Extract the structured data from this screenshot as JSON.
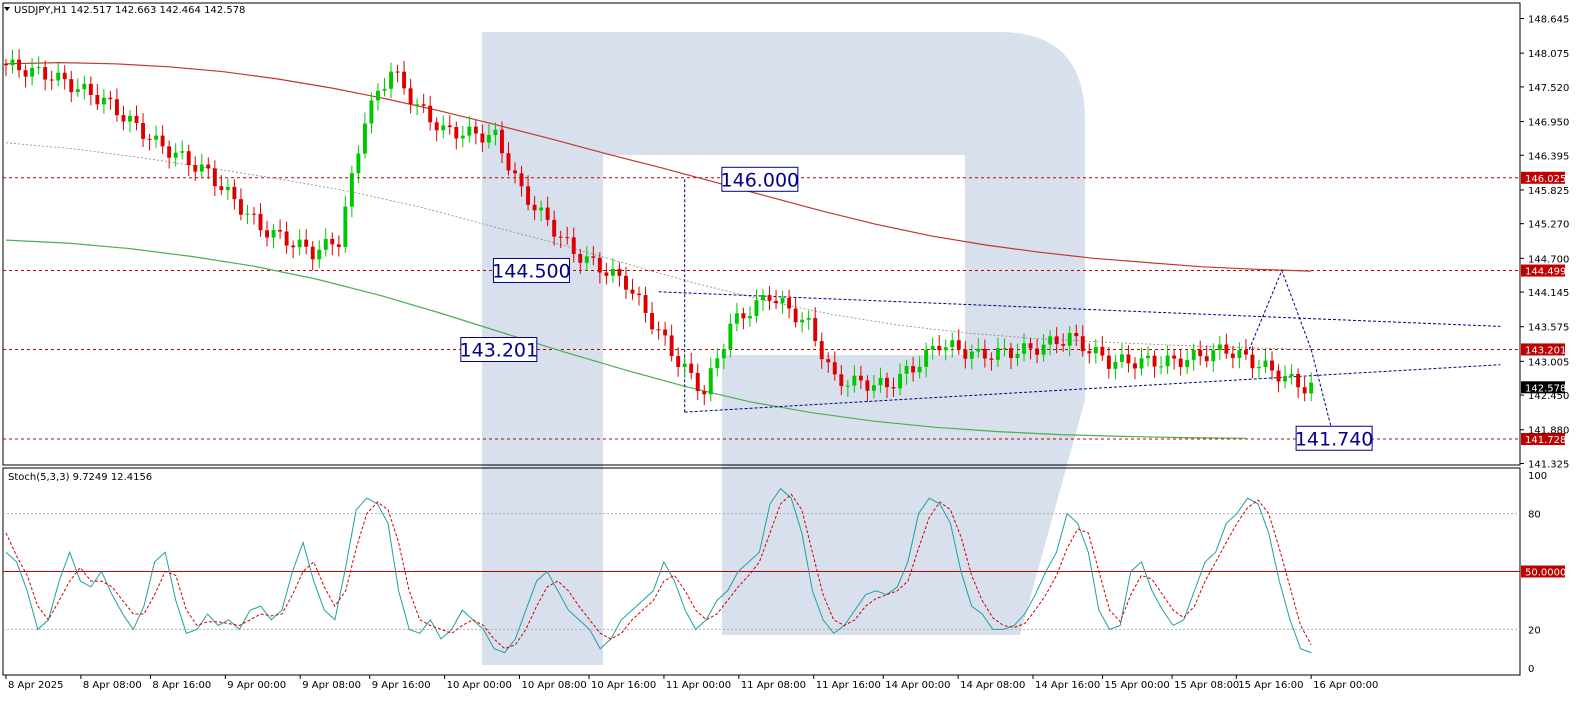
{
  "main_header": "USDJPY,H1  142.517 142.663 142.464 142.578",
  "stoch_header": "Stoch(5,3,3) 9.7249 12.4156",
  "colors": {
    "bull": "#00c800",
    "bear": "#dc0000",
    "ma_slow": "#c0392b",
    "ma_fast": "#4caf50",
    "level_line": "#c00000",
    "forecast": "#00008b",
    "stoch_main": "#20a0a0",
    "stoch_signal": "#d00000",
    "watermark": "#c9d6e6"
  },
  "chart_data": [
    {
      "type": "candlestick",
      "symbol": "USDJPY",
      "timeframe": "H1",
      "ylim": [
        141.3,
        148.9
      ],
      "y_ticks": [
        "148.645",
        "148.075",
        "147.520",
        "146.950",
        "146.395",
        "145.825",
        "145.270",
        "144.700",
        "144.145",
        "143.575",
        "143.005",
        "142.450",
        "141.880",
        "141.325"
      ],
      "x_ticks": [
        "8 Apr 2025",
        "8 Apr 08:00",
        "8 Apr 16:00",
        "9 Apr 00:00",
        "9 Apr 08:00",
        "9 Apr 16:00",
        "10 Apr 00:00",
        "10 Apr 08:00",
        "10 Apr 16:00",
        "11 Apr 00:00",
        "11 Apr 08:00",
        "11 Apr 16:00",
        "14 Apr 00:00",
        "14 Apr 08:00",
        "14 Apr 16:00",
        "15 Apr 00:00",
        "15 Apr 08:00",
        "15 Apr 16:00",
        "16 Apr 00:00"
      ],
      "levels": [
        {
          "value": 146.025,
          "label": "146.025"
        },
        {
          "value": 144.499,
          "label": "144.499"
        },
        {
          "value": 143.201,
          "label": "143.201"
        },
        {
          "value": 141.728,
          "label": "141.728"
        }
      ],
      "current_price": {
        "value": 142.578,
        "label": "142.578"
      },
      "annotations": [
        {
          "text": "146.000",
          "bar": 110,
          "price": 146.0
        },
        {
          "text": "144.500",
          "bar": 75,
          "price": 144.5
        },
        {
          "text": "143.201",
          "bar": 70,
          "price": 143.2
        },
        {
          "text": "141.740",
          "bar": 198,
          "price": 141.74
        }
      ],
      "ma_slow": [
        147.9,
        147.92,
        147.9,
        147.85,
        147.77,
        147.65,
        147.5,
        147.32,
        147.12,
        146.9,
        146.67,
        146.43,
        146.2,
        145.96,
        145.72,
        145.48,
        145.26,
        145.07,
        144.92,
        144.8,
        144.7,
        144.63,
        144.56,
        144.52,
        144.49
      ],
      "ma_fast": [
        145.0,
        144.95,
        144.86,
        144.73,
        144.57,
        144.36,
        144.1,
        143.8,
        143.48,
        143.16,
        142.86,
        142.58,
        142.34,
        142.16,
        142.02,
        141.92,
        141.85,
        141.8,
        141.77,
        141.75,
        141.74
      ],
      "ma_mid": [
        146.6,
        146.5,
        146.35,
        146.18,
        146.0,
        145.8,
        145.55,
        145.25,
        144.95,
        144.62,
        144.3,
        144.02,
        143.78,
        143.6,
        143.47,
        143.38,
        143.32,
        143.27,
        143.23,
        143.2
      ],
      "forecast_path": [
        [
          190.5,
          143.2
        ],
        [
          195.5,
          144.5
        ],
        [
          200,
          143.2
        ],
        [
          203.5,
          141.74
        ]
      ],
      "channel_upper": [
        [
          100,
          144.15
        ],
        [
          229,
          143.58
        ]
      ],
      "channel_lower": [
        [
          104,
          142.17
        ],
        [
          229,
          142.95
        ]
      ],
      "vertical_range": [
        [
          104,
          146.0
        ],
        [
          104,
          142.17
        ]
      ]
    },
    {
      "type": "line",
      "title": "Stoch(5,3,3)",
      "ylim": [
        0,
        100
      ],
      "y_ticks": [
        "100",
        "80",
        "50.0000",
        "20",
        "0"
      ],
      "levels": [
        80,
        50,
        20
      ],
      "series": [
        {
          "name": "main",
          "values": [
            60,
            55,
            40,
            20,
            25,
            45,
            60,
            45,
            42,
            50,
            38,
            28,
            20,
            32,
            55,
            60,
            35,
            18,
            20,
            28,
            22,
            25,
            20,
            30,
            32,
            25,
            30,
            50,
            65,
            45,
            30,
            25,
            52,
            82,
            88,
            85,
            75,
            40,
            20,
            18,
            25,
            15,
            20,
            30,
            25,
            20,
            10,
            8,
            15,
            30,
            45,
            50,
            40,
            30,
            25,
            20,
            10,
            15,
            25,
            30,
            35,
            40,
            55,
            45,
            30,
            20,
            25,
            35,
            40,
            50,
            55,
            60,
            85,
            93,
            88,
            70,
            40,
            25,
            18,
            22,
            30,
            38,
            40,
            38,
            42,
            55,
            80,
            88,
            85,
            75,
            50,
            32,
            28,
            20,
            20,
            22,
            28,
            38,
            50,
            60,
            80,
            75,
            60,
            30,
            20,
            22,
            50,
            55,
            40,
            30,
            22,
            25,
            40,
            55,
            60,
            75,
            80,
            88,
            85,
            70,
            45,
            25,
            10,
            8
          ]
        },
        {
          "name": "signal",
          "values": [
            70,
            58,
            48,
            32,
            25,
            35,
            45,
            52,
            45,
            45,
            42,
            35,
            28,
            28,
            38,
            50,
            48,
            30,
            22,
            24,
            24,
            23,
            22,
            25,
            28,
            27,
            28,
            38,
            50,
            55,
            42,
            32,
            40,
            62,
            80,
            86,
            82,
            65,
            40,
            25,
            22,
            20,
            18,
            22,
            25,
            22,
            15,
            10,
            12,
            20,
            32,
            42,
            45,
            40,
            32,
            25,
            18,
            15,
            18,
            25,
            30,
            35,
            45,
            48,
            40,
            30,
            25,
            28,
            35,
            42,
            48,
            55,
            70,
            85,
            90,
            82,
            60,
            38,
            25,
            22,
            25,
            32,
            36,
            38,
            40,
            45,
            62,
            78,
            86,
            82,
            68,
            48,
            35,
            26,
            22,
            21,
            23,
            30,
            38,
            48,
            62,
            72,
            70,
            50,
            30,
            24,
            38,
            48,
            46,
            38,
            30,
            26,
            32,
            45,
            55,
            65,
            75,
            83,
            87,
            80,
            62,
            42,
            22,
            12
          ]
        }
      ]
    }
  ]
}
